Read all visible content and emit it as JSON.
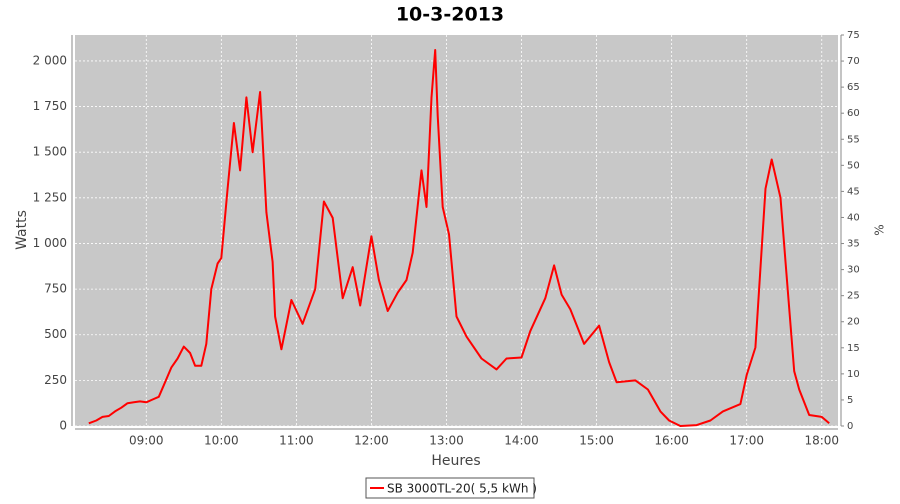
{
  "chart_data": {
    "type": "line",
    "title": "10-3-2013",
    "x_label": "Heures",
    "y_label": "Watts",
    "y2_label": "%",
    "x": [
      "08:14",
      "08:20",
      "08:25",
      "08:30",
      "08:35",
      "08:40",
      "08:45",
      "08:50",
      "08:55",
      "09:00",
      "09:05",
      "09:10",
      "09:15",
      "09:20",
      "09:25",
      "09:30",
      "09:35",
      "09:39",
      "09:44",
      "09:48",
      "09:52",
      "09:57",
      "10:00",
      "10:05",
      "10:10",
      "10:15",
      "10:20",
      "10:25",
      "10:31",
      "10:36",
      "10:41",
      "10:43",
      "10:48",
      "10:56",
      "11:05",
      "11:15",
      "11:22",
      "11:29",
      "11:37",
      "11:45",
      "11:51",
      "12:00",
      "12:06",
      "12:13",
      "12:21",
      "12:28",
      "12:33",
      "12:40",
      "12:44",
      "12:48",
      "12:51",
      "12:53",
      "12:57",
      "13:02",
      "13:08",
      "13:16",
      "13:28",
      "13:40",
      "13:48",
      "14:00",
      "14:07",
      "14:19",
      "14:26",
      "14:32",
      "14:39",
      "14:50",
      "15:02",
      "15:10",
      "15:16",
      "15:31",
      "15:41",
      "15:51",
      "15:58",
      "16:07",
      "16:20",
      "16:31",
      "16:41",
      "16:55",
      "17:00",
      "17:07",
      "17:15",
      "17:20",
      "17:27",
      "17:31",
      "17:38",
      "17:42",
      "17:50",
      "18:00",
      "18:06"
    ],
    "series": [
      {
        "name": "SB 3000TL-20( 5,5 kWh )",
        "color": "#ff0000",
        "values": [
          15,
          30,
          50,
          55,
          80,
          100,
          125,
          130,
          135,
          130,
          145,
          160,
          240,
          320,
          370,
          435,
          400,
          330,
          330,
          450,
          750,
          890,
          920,
          1300,
          1660,
          1400,
          1800,
          1500,
          1830,
          1170,
          900,
          600,
          420,
          690,
          560,
          750,
          1230,
          1140,
          700,
          870,
          660,
          1040,
          800,
          630,
          730,
          800,
          950,
          1400,
          1200,
          1800,
          2060,
          1700,
          1200,
          1050,
          600,
          490,
          370,
          310,
          370,
          375,
          520,
          700,
          880,
          720,
          640,
          450,
          550,
          350,
          240,
          250,
          200,
          80,
          30,
          0,
          5,
          30,
          80,
          120,
          280,
          430,
          1300,
          1460,
          1250,
          900,
          300,
          200,
          60,
          50,
          15
        ]
      }
    ],
    "xlim": [
      "08:03",
      "18:13"
    ],
    "xticks": [
      "09:00",
      "10:00",
      "11:00",
      "12:00",
      "13:00",
      "14:00",
      "15:00",
      "16:00",
      "17:00",
      "18:00"
    ],
    "ylim": [
      0,
      2142
    ],
    "yticks": [
      0,
      250,
      500,
      750,
      {
        "value": 1000,
        "label": "1 000"
      },
      {
        "value": 1250,
        "label": "1 250"
      },
      {
        "value": 1500,
        "label": "1 500"
      },
      {
        "value": 1750,
        "label": "1 750"
      },
      {
        "value": 2000,
        "label": "2 000"
      }
    ],
    "y2lim": [
      0,
      75
    ],
    "y2ticks": [
      0,
      5,
      10,
      15,
      20,
      25,
      30,
      35,
      40,
      45,
      50,
      55,
      60,
      65,
      70,
      75
    ],
    "grid": true
  }
}
